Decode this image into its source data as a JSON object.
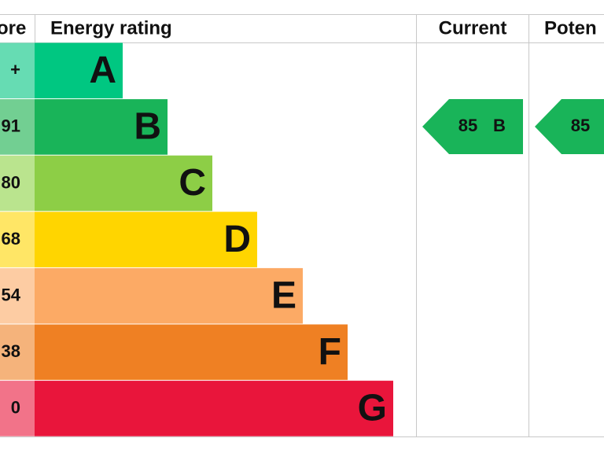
{
  "header": {
    "score": "ore",
    "rating": "Energy rating",
    "current": "Current",
    "potential": "Poten"
  },
  "rows": [
    {
      "score": "+",
      "band": "A",
      "color": "#00c781",
      "light": "#66dcb3"
    },
    {
      "score": "91",
      "band": "B",
      "color": "#19b459",
      "light": "#72cf92"
    },
    {
      "score": "80",
      "band": "C",
      "color": "#8dce46",
      "light": "#bae48e"
    },
    {
      "score": "68",
      "band": "D",
      "color": "#ffd500",
      "light": "#ffe666"
    },
    {
      "score": "54",
      "band": "E",
      "color": "#fcaa65",
      "light": "#fdcca3"
    },
    {
      "score": "38",
      "band": "F",
      "color": "#ef8023",
      "light": "#f5b37b"
    },
    {
      "score": "0",
      "band": "G",
      "color": "#e9153b",
      "light": "#f27389"
    }
  ],
  "current": {
    "value": "85",
    "band": "B",
    "color": "#19b459"
  },
  "potential": {
    "value": "85",
    "color": "#19b459"
  }
}
